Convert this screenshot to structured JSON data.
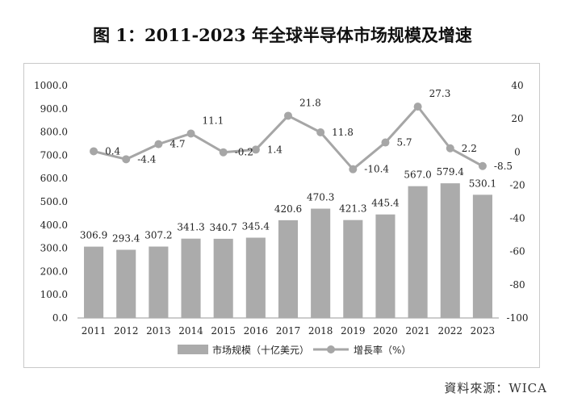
{
  "chart_data": {
    "type": "bar",
    "title": "图 1：2011-2023 年全球半导体市场规模及增速",
    "categories": [
      "2011",
      "2012",
      "2013",
      "2014",
      "2015",
      "2016",
      "2017",
      "2018",
      "2019",
      "2020",
      "2021",
      "2022",
      "2023"
    ],
    "series": [
      {
        "name": "市场规模（十亿美元）",
        "type": "bar",
        "axis": "left",
        "color": "#ababab",
        "values": [
          306.9,
          293.4,
          307.2,
          341.3,
          340.7,
          345.4,
          420.6,
          470.3,
          421.3,
          445.4,
          567.0,
          579.4,
          530.1
        ],
        "labels": [
          "306.9",
          "293.4",
          "307.2",
          "341.3",
          "340.7",
          "345.4",
          "420.6",
          "470.3",
          "421.3",
          "445.4",
          "567.0",
          "579.4",
          "530.1"
        ]
      },
      {
        "name": "增長率（%）",
        "type": "line",
        "axis": "right",
        "color": "#a6a6a6",
        "values": [
          0.4,
          -4.4,
          4.7,
          11.1,
          -0.2,
          1.4,
          21.8,
          11.8,
          -10.4,
          5.7,
          27.3,
          2.2,
          -8.5
        ],
        "labels": [
          "0.4",
          "-4.4",
          "4.7",
          "11.1",
          "-0.2",
          "1.4",
          "21.8",
          "11.8",
          "-10.4",
          "5.7",
          "27.3",
          "2.2",
          "-8.5"
        ]
      }
    ],
    "y_left": {
      "ylim": [
        0,
        1000
      ],
      "ticks": [
        0,
        100,
        200,
        300,
        400,
        500,
        600,
        700,
        800,
        900,
        1000
      ],
      "tick_labels": [
        "0.0",
        "100.0",
        "200.0",
        "300.0",
        "400.0",
        "500.0",
        "600.0",
        "700.0",
        "800.0",
        "900.0",
        "1000.0"
      ]
    },
    "y_right": {
      "ylim": [
        -100,
        40
      ],
      "ticks": [
        -100,
        -80,
        -60,
        -40,
        -20,
        0,
        20,
        40
      ],
      "tick_labels": [
        "-100",
        "-80",
        "-60",
        "-40",
        "-20",
        "0",
        "20",
        "40"
      ]
    },
    "grid": false,
    "legend_position": "bottom-center"
  },
  "source": "資料來源：WICA"
}
